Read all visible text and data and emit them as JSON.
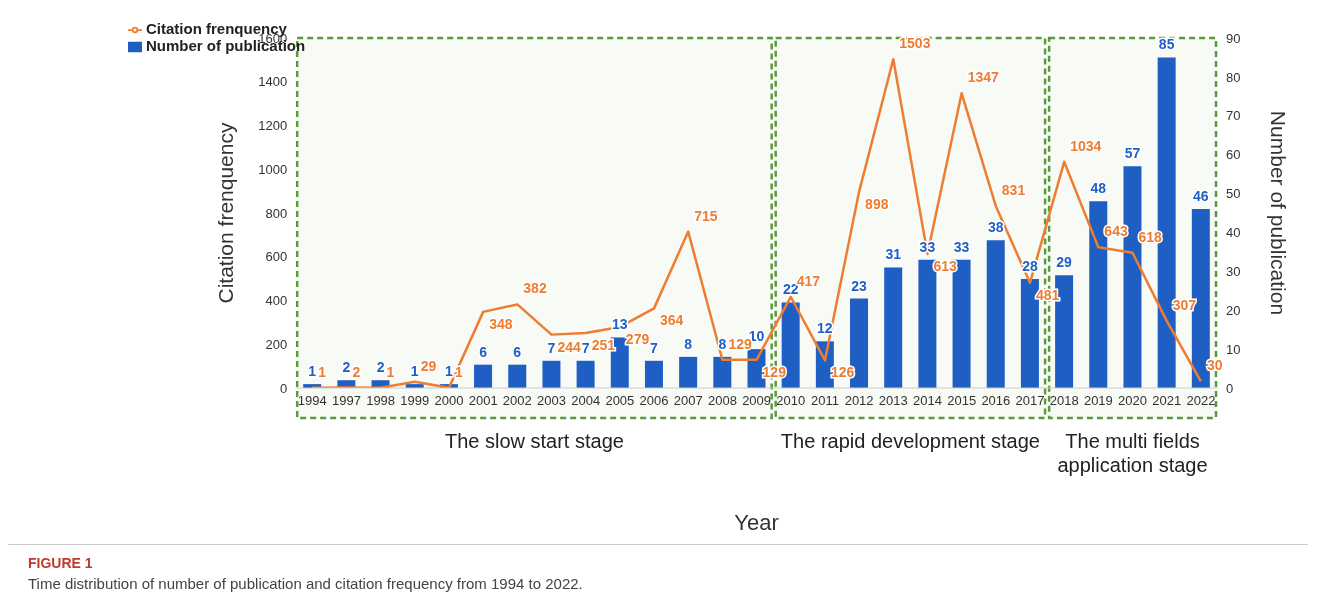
{
  "chart_data": {
    "type": "bar",
    "categories": [
      "1994",
      "1997",
      "1998",
      "1999",
      "2000",
      "2001",
      "2002",
      "2003",
      "2004",
      "2005",
      "2006",
      "2007",
      "2008",
      "2009",
      "2010",
      "2011",
      "2012",
      "2013",
      "2014",
      "2015",
      "2016",
      "2017",
      "2018",
      "2019",
      "2020",
      "2021",
      "2022"
    ],
    "series": [
      {
        "name": "Number of publication",
        "axis": "y2",
        "color": "#1f5fc4",
        "values": [
          1,
          2,
          2,
          1,
          1,
          6,
          6,
          7,
          7,
          13,
          7,
          8,
          8,
          10,
          22,
          12,
          23,
          31,
          33,
          33,
          38,
          28,
          29,
          48,
          57,
          85,
          46
        ]
      },
      {
        "name": "Citation frenquency",
        "type": "line",
        "color": "#ed7d31",
        "values": [
          1,
          2,
          1,
          29,
          1,
          348,
          382,
          244,
          251,
          279,
          364,
          715,
          129,
          129,
          417,
          126,
          898,
          1503,
          613,
          1347,
          831,
          481,
          1034,
          643,
          618,
          307,
          30
        ]
      }
    ],
    "xlabel": "Year",
    "ylabel": "Citation frenquency",
    "y2label": "Number of publication",
    "ylim": [
      0,
      1600
    ],
    "yticks": [
      0,
      200,
      400,
      600,
      800,
      1000,
      1200,
      1400,
      1600
    ],
    "y2lim": [
      0,
      90
    ],
    "y2ticks": [
      0,
      10,
      20,
      30,
      40,
      50,
      60,
      70,
      80,
      90
    ],
    "bands": [
      {
        "axis": "x",
        "from": "1994",
        "to": "2009",
        "label": "The slow start stage",
        "color": "#5a9a3c"
      },
      {
        "axis": "x",
        "from": "2010",
        "to": "2017",
        "label": "The rapid development stage",
        "color": "#5a9a3c"
      },
      {
        "axis": "x",
        "from": "2018",
        "to": "2022",
        "label": "The multi fields application stage",
        "color": "#5a9a3c"
      }
    ],
    "data_labels": true,
    "grid": false,
    "legend": "top left",
    "marker": "none",
    "line_style": "solid",
    "annotations": [
      "FIGURE 1",
      "Time distribution of number of publication and citation frequency from 1994 to 2022."
    ]
  }
}
